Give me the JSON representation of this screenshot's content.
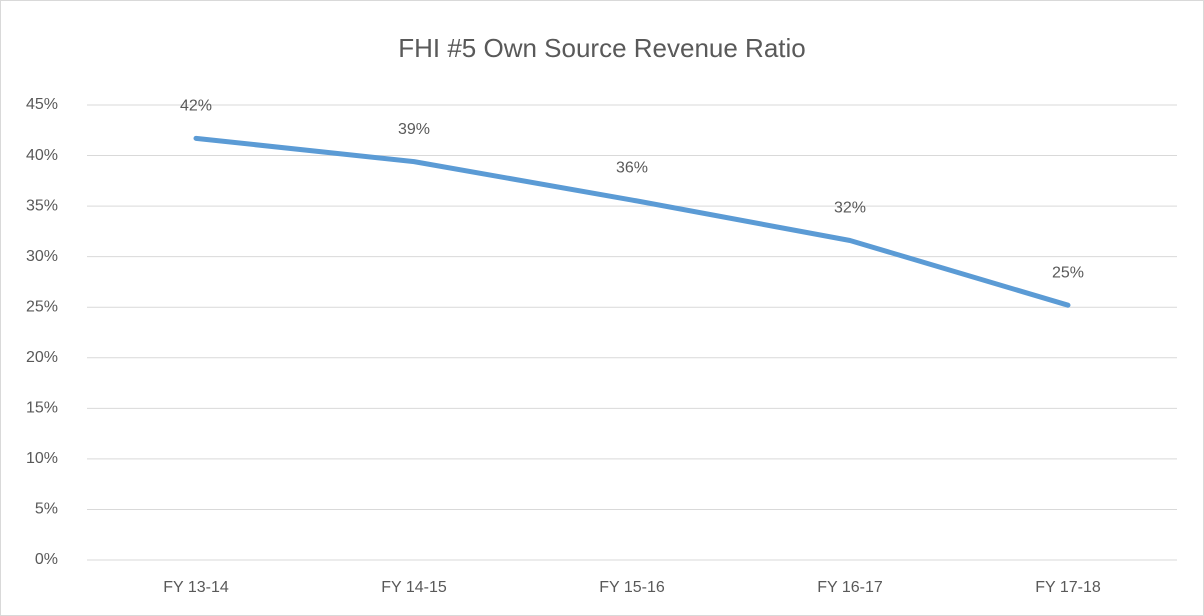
{
  "chart_data": {
    "type": "line",
    "title": "FHI #5 Own Source Revenue Ratio",
    "categories": [
      "FY 13-14",
      "FY 14-15",
      "FY 15-16",
      "FY 16-17",
      "FY 17-18"
    ],
    "series": [
      {
        "name": "Own Source Revenue Ratio",
        "color": "#5b9bd5",
        "values": [
          41.7,
          39.4,
          35.6,
          31.6,
          25.2
        ],
        "value_labels": [
          "42%",
          "39%",
          "36%",
          "32%",
          "25%"
        ]
      }
    ],
    "ylim": [
      0,
      45
    ],
    "yticks": [
      {
        "value": 0,
        "label": "0%"
      },
      {
        "value": 5,
        "label": "5%"
      },
      {
        "value": 10,
        "label": "10%"
      },
      {
        "value": 15,
        "label": "15%"
      },
      {
        "value": 20,
        "label": "20%"
      },
      {
        "value": 25,
        "label": "25%"
      },
      {
        "value": 30,
        "label": "30%"
      },
      {
        "value": 35,
        "label": "35%"
      },
      {
        "value": 40,
        "label": "40%"
      },
      {
        "value": 45,
        "label": "45%"
      }
    ],
    "grid": true
  }
}
